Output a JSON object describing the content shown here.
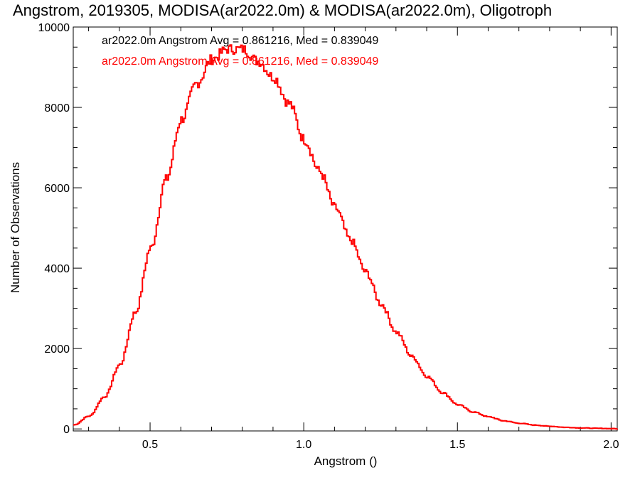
{
  "chart_data": {
    "type": "line",
    "step": true,
    "title": "Angstrom, 2019305, MODISA(ar2022.0m) & MODISA(ar2022.0m), Oligotroph",
    "xlabel": "Angstrom ()",
    "ylabel": "Number of Observations",
    "xlim": [
      0.25,
      2.02
    ],
    "ylim": [
      -50,
      10000
    ],
    "xticks": [
      {
        "value": 0.5,
        "label": "0.5"
      },
      {
        "value": 1.0,
        "label": "1.0"
      },
      {
        "value": 1.5,
        "label": "1.5"
      },
      {
        "value": 2.0,
        "label": "2.0"
      }
    ],
    "yticks": [
      {
        "value": 0,
        "label": "0"
      },
      {
        "value": 2000,
        "label": "2000"
      },
      {
        "value": 4000,
        "label": "4000"
      },
      {
        "value": 6000,
        "label": "6000"
      },
      {
        "value": 8000,
        "label": "8000"
      },
      {
        "value": 10000,
        "label": "10000"
      }
    ],
    "grid": false,
    "legend_position": "top-left",
    "legend": [
      {
        "text": "ar2022.0m Angstrom Avg = 0.861216, Med = 0.839049",
        "color": "#000000"
      },
      {
        "text": "ar2022.0m Angstrom Avg = 0.861216, Med = 0.839049",
        "color": "#ff0000"
      }
    ],
    "series": [
      {
        "color": "#ff0000",
        "x": [
          0.25,
          0.3,
          0.35,
          0.4,
          0.45,
          0.5,
          0.55,
          0.6,
          0.65,
          0.7,
          0.75,
          0.8,
          0.85,
          0.9,
          0.95,
          1.0,
          1.05,
          1.1,
          1.15,
          1.2,
          1.25,
          1.3,
          1.35,
          1.4,
          1.45,
          1.5,
          1.55,
          1.6,
          1.65,
          1.7,
          1.75,
          1.8,
          1.85,
          1.9,
          1.95,
          2.0,
          2.02
        ],
        "y": [
          100,
          320,
          800,
          1600,
          2900,
          4500,
          6200,
          7700,
          8600,
          9200,
          9450,
          9450,
          9150,
          8750,
          8100,
          7200,
          6400,
          5500,
          4700,
          3900,
          3100,
          2400,
          1800,
          1300,
          900,
          600,
          420,
          300,
          200,
          140,
          95,
          65,
          40,
          25,
          15,
          8,
          5
        ]
      }
    ]
  }
}
